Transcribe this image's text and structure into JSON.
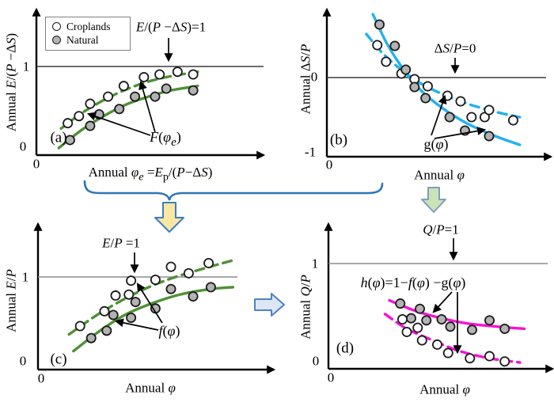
{
  "figure_title": "Four-panel annual water balance framework figure",
  "legend": {
    "croplands": "Croplands",
    "natural": "Natural"
  },
  "connectors": {
    "brace": {
      "color": "#2e75b6"
    },
    "yellow_down_arrow": {
      "fill": "#fbe7a4",
      "stroke": "#3c7ebf"
    },
    "green_down_arrow": {
      "fill": "#cbe3b8",
      "stroke": "#7e9ec2"
    },
    "blue_right_arrow": {
      "fill": "#dce6f5",
      "stroke": "#4d83c4"
    }
  },
  "chart_data": {
    "type": "scatter",
    "note": "x values are fractions of the unlabeled x-axis length; y values are in axis units",
    "colors": {
      "green": "#4f9136",
      "cyan": "#23b1ef",
      "magenta": "#f713d5",
      "natural_fill": "#b3b3b3",
      "point_stroke": "#1a1a1a"
    },
    "panels": {
      "a": {
        "letter": "(a)",
        "ytitle": "Annual <i>E</i>/(<i>P</i> −Δ<i>S</i>)",
        "xtitle": "Annual <i>φ<sub>e</sub></i> =<i>E</i><sub>p</sub>/(<i>P</i>−Δ<i>S</i>)",
        "ref_label": "<i>E</i>/(<i>P</i> −Δ<i>S</i>)=1",
        "func_label": "<i>F</i>(<i>φ<sub>e</sub></i>)",
        "yticks": {
          "one": "1",
          "zero": "0"
        },
        "xorigin": "0",
        "ylim": [
          0,
          1.6
        ],
        "ref_line": {
          "value": 1,
          "end_frac": 1.0,
          "color": "#3d3d3d"
        },
        "series": [
          {
            "name": "croplands",
            "fill": "open",
            "points": [
              [
                0.14,
                0.36
              ],
              [
                0.19,
                0.44
              ],
              [
                0.24,
                0.58
              ],
              [
                0.32,
                0.66
              ],
              [
                0.39,
                0.78
              ],
              [
                0.48,
                0.88
              ],
              [
                0.55,
                0.91
              ],
              [
                0.63,
                0.94
              ],
              [
                0.7,
                0.91
              ]
            ]
          },
          {
            "name": "natural",
            "fill": "gray",
            "points": [
              [
                0.15,
                0.17
              ],
              [
                0.24,
                0.33
              ],
              [
                0.28,
                0.46
              ],
              [
                0.37,
                0.52
              ],
              [
                0.44,
                0.66
              ],
              [
                0.53,
                0.66
              ],
              [
                0.58,
                0.75
              ],
              [
                0.7,
                0.73
              ]
            ]
          }
        ],
        "curves": [
          {
            "series": "croplands",
            "color": "green",
            "dashed": true,
            "points": [
              [
                0.11,
                0.3
              ],
              [
                0.2,
                0.47
              ],
              [
                0.3,
                0.62
              ],
              [
                0.4,
                0.74
              ],
              [
                0.5,
                0.83
              ],
              [
                0.6,
                0.89
              ],
              [
                0.72,
                0.94
              ]
            ]
          },
          {
            "series": "natural",
            "color": "green",
            "dashed": false,
            "points": [
              [
                0.1,
                0.08
              ],
              [
                0.2,
                0.28
              ],
              [
                0.3,
                0.44
              ],
              [
                0.4,
                0.57
              ],
              [
                0.5,
                0.66
              ],
              [
                0.6,
                0.73
              ],
              [
                0.72,
                0.78
              ]
            ]
          }
        ],
        "arrows": [
          {
            "from": [
              213,
              48
            ],
            "to": [
              213,
              76
            ]
          },
          {
            "from": [
              196,
              167
            ],
            "to": [
              178,
              104
            ]
          },
          {
            "from": [
              190,
              171
            ],
            "to": [
              112,
              144
            ]
          }
        ]
      },
      "b": {
        "letter": "(b)",
        "ytitle": "Annual Δ<i>S</i>/<i>P</i>",
        "xtitle": "Annual <i>φ</i>",
        "ref_label": "Δ<i>S</i>/<i>P</i>=0",
        "func_label": "g(<i>φ</i>)",
        "yticks": {
          "zero": "0",
          "minusone": "-1"
        },
        "xorigin": "0",
        "ylim": [
          -1,
          0.86
        ],
        "ref_line": {
          "value": 0,
          "end_frac": 0.979,
          "color": "#3d3d3d"
        },
        "series": [
          {
            "name": "croplands",
            "fill": "open",
            "points": [
              [
                0.23,
                0.41
              ],
              [
                0.27,
                0.2
              ],
              [
                0.34,
                0.05
              ],
              [
                0.4,
                -0.02
              ],
              [
                0.46,
                -0.11
              ],
              [
                0.55,
                -0.23
              ],
              [
                0.61,
                -0.3
              ],
              [
                0.66,
                -0.5
              ],
              [
                0.72,
                -0.5
              ],
              [
                0.74,
                -0.41
              ],
              [
                0.85,
                -0.54
              ]
            ]
          },
          {
            "name": "natural",
            "fill": "gray",
            "points": [
              [
                0.24,
                0.67
              ],
              [
                0.31,
                0.4
              ],
              [
                0.36,
                0.1
              ],
              [
                0.4,
                -0.12
              ],
              [
                0.45,
                -0.26
              ],
              [
                0.56,
                -0.5
              ],
              [
                0.63,
                -0.67
              ],
              [
                0.74,
                -0.74
              ]
            ]
          }
        ],
        "curves": [
          {
            "series": "croplands",
            "color": "cyan",
            "dashed": true,
            "points": [
              [
                0.18,
                0.55
              ],
              [
                0.25,
                0.32
              ],
              [
                0.33,
                0.12
              ],
              [
                0.42,
                -0.06
              ],
              [
                0.52,
                -0.2
              ],
              [
                0.64,
                -0.33
              ],
              [
                0.78,
                -0.44
              ],
              [
                0.88,
                -0.5
              ]
            ]
          },
          {
            "series": "natural",
            "color": "cyan",
            "dashed": false,
            "points": [
              [
                0.21,
                0.8
              ],
              [
                0.27,
                0.45
              ],
              [
                0.33,
                0.18
              ],
              [
                0.4,
                -0.08
              ],
              [
                0.5,
                -0.33
              ],
              [
                0.62,
                -0.55
              ],
              [
                0.75,
                -0.72
              ],
              [
                0.88,
                -0.85
              ]
            ]
          }
        ],
        "arrows": [
          {
            "from": [
              225,
              73
            ],
            "to": [
              225,
              91
            ]
          },
          {
            "from": [
              195,
              171
            ],
            "to": [
              212,
              122
            ]
          },
          {
            "from": [
              199,
              175
            ],
            "to": [
              262,
              164
            ]
          }
        ]
      },
      "c": {
        "letter": "(c)",
        "ytitle": "Annual <i>E</i>/<i>P</i>",
        "xtitle": "Annual <i>φ</i>",
        "ref_label": "<i>E</i>/<i>P</i> =1",
        "func_label": "<i>f</i>(<i>φ</i>)",
        "yticks": {
          "one": "1",
          "zero": "0"
        },
        "xorigin": "0",
        "ylim": [
          0,
          1.55
        ],
        "ref_line": {
          "value": 1,
          "end_frac": 0.846,
          "color": "#8c8c8c"
        },
        "series": [
          {
            "name": "croplands",
            "fill": "open",
            "points": [
              [
                0.19,
                0.47
              ],
              [
                0.3,
                0.63
              ],
              [
                0.35,
                0.8
              ],
              [
                0.41,
                0.81
              ],
              [
                0.42,
                0.96
              ],
              [
                0.53,
                0.97
              ],
              [
                0.6,
                1.11
              ],
              [
                0.68,
                1.04
              ],
              [
                0.77,
                1.15
              ]
            ]
          },
          {
            "name": "natural",
            "fill": "gray",
            "points": [
              [
                0.24,
                0.34
              ],
              [
                0.31,
                0.42
              ],
              [
                0.34,
                0.59
              ],
              [
                0.42,
                0.56
              ],
              [
                0.44,
                0.73
              ],
              [
                0.53,
                0.66
              ],
              [
                0.6,
                0.87
              ],
              [
                0.7,
                0.79
              ],
              [
                0.78,
                0.89
              ]
            ]
          }
        ],
        "curves": [
          {
            "series": "croplands",
            "color": "green",
            "dashed": true,
            "points": [
              [
                0.14,
                0.38
              ],
              [
                0.26,
                0.58
              ],
              [
                0.38,
                0.75
              ],
              [
                0.5,
                0.89
              ],
              [
                0.62,
                1.0
              ],
              [
                0.76,
                1.1
              ],
              [
                0.88,
                1.18
              ]
            ]
          },
          {
            "series": "natural",
            "color": "green",
            "dashed": false,
            "points": [
              [
                0.16,
                0.2
              ],
              [
                0.28,
                0.42
              ],
              [
                0.4,
                0.6
              ],
              [
                0.52,
                0.72
              ],
              [
                0.64,
                0.81
              ],
              [
                0.78,
                0.87
              ],
              [
                0.88,
                0.89
              ]
            ]
          }
        ],
        "arrows": [
          {
            "from": [
              170,
              49
            ],
            "to": [
              170,
              73
            ]
          },
          {
            "from": [
              205,
              138
            ],
            "to": [
              174,
              89
            ]
          },
          {
            "from": [
              200,
              147
            ],
            "to": [
              147,
              136
            ]
          }
        ]
      },
      "d": {
        "letter": "(d)",
        "ytitle": "Annual <i>Q</i>/<i>P</i>",
        "xtitle": "Annual <i>φ</i>",
        "ref_label": "<i>Q</i>/<i>P</i>=1",
        "func_label": "<i>h</i>(<i>φ</i>)=1−<i>f</i>(<i>φ</i>) −g(<i>φ</i>)",
        "yticks": {
          "one": "1",
          "zero": "0"
        },
        "xorigin": "0",
        "ylim": [
          0,
          1.37
        ],
        "ref_line": {
          "value": 1,
          "end_frac": 0.979,
          "color": "#8c8c8c"
        },
        "series": [
          {
            "name": "croplands",
            "fill": "open",
            "points": [
              [
                0.34,
                0.47
              ],
              [
                0.36,
                0.35
              ],
              [
                0.41,
                0.39
              ],
              [
                0.43,
                0.27
              ],
              [
                0.5,
                0.23
              ],
              [
                0.55,
                0.15
              ],
              [
                0.65,
                0.1
              ],
              [
                0.74,
                0.12
              ],
              [
                0.81,
                0.07
              ]
            ]
          },
          {
            "name": "natural",
            "fill": "gray",
            "points": [
              [
                0.33,
                0.62
              ],
              [
                0.38,
                0.48
              ],
              [
                0.42,
                0.57
              ],
              [
                0.45,
                0.46
              ],
              [
                0.52,
                0.47
              ],
              [
                0.56,
                0.4
              ],
              [
                0.66,
                0.37
              ],
              [
                0.74,
                0.46
              ],
              [
                0.81,
                0.38
              ]
            ]
          }
        ],
        "curves": [
          {
            "series": "croplands",
            "color": "magenta",
            "dashed": true,
            "points": [
              [
                0.26,
                0.52
              ],
              [
                0.36,
                0.38
              ],
              [
                0.48,
                0.27
              ],
              [
                0.6,
                0.17
              ],
              [
                0.74,
                0.1
              ],
              [
                0.88,
                0.06
              ]
            ]
          },
          {
            "series": "natural",
            "color": "magenta",
            "dashed": false,
            "points": [
              [
                0.28,
                0.65
              ],
              [
                0.4,
                0.55
              ],
              [
                0.52,
                0.48
              ],
              [
                0.64,
                0.43
              ],
              [
                0.78,
                0.4
              ],
              [
                0.9,
                0.38
              ]
            ]
          }
        ],
        "arrows": [
          {
            "from": [
              223,
              31
            ],
            "to": [
              223,
              57
            ]
          },
          {
            "from": [
              221,
              99
            ],
            "to": [
              198,
              124
            ]
          },
          {
            "from": [
              228,
              99
            ],
            "to": [
              228,
              175
            ]
          }
        ]
      }
    }
  }
}
